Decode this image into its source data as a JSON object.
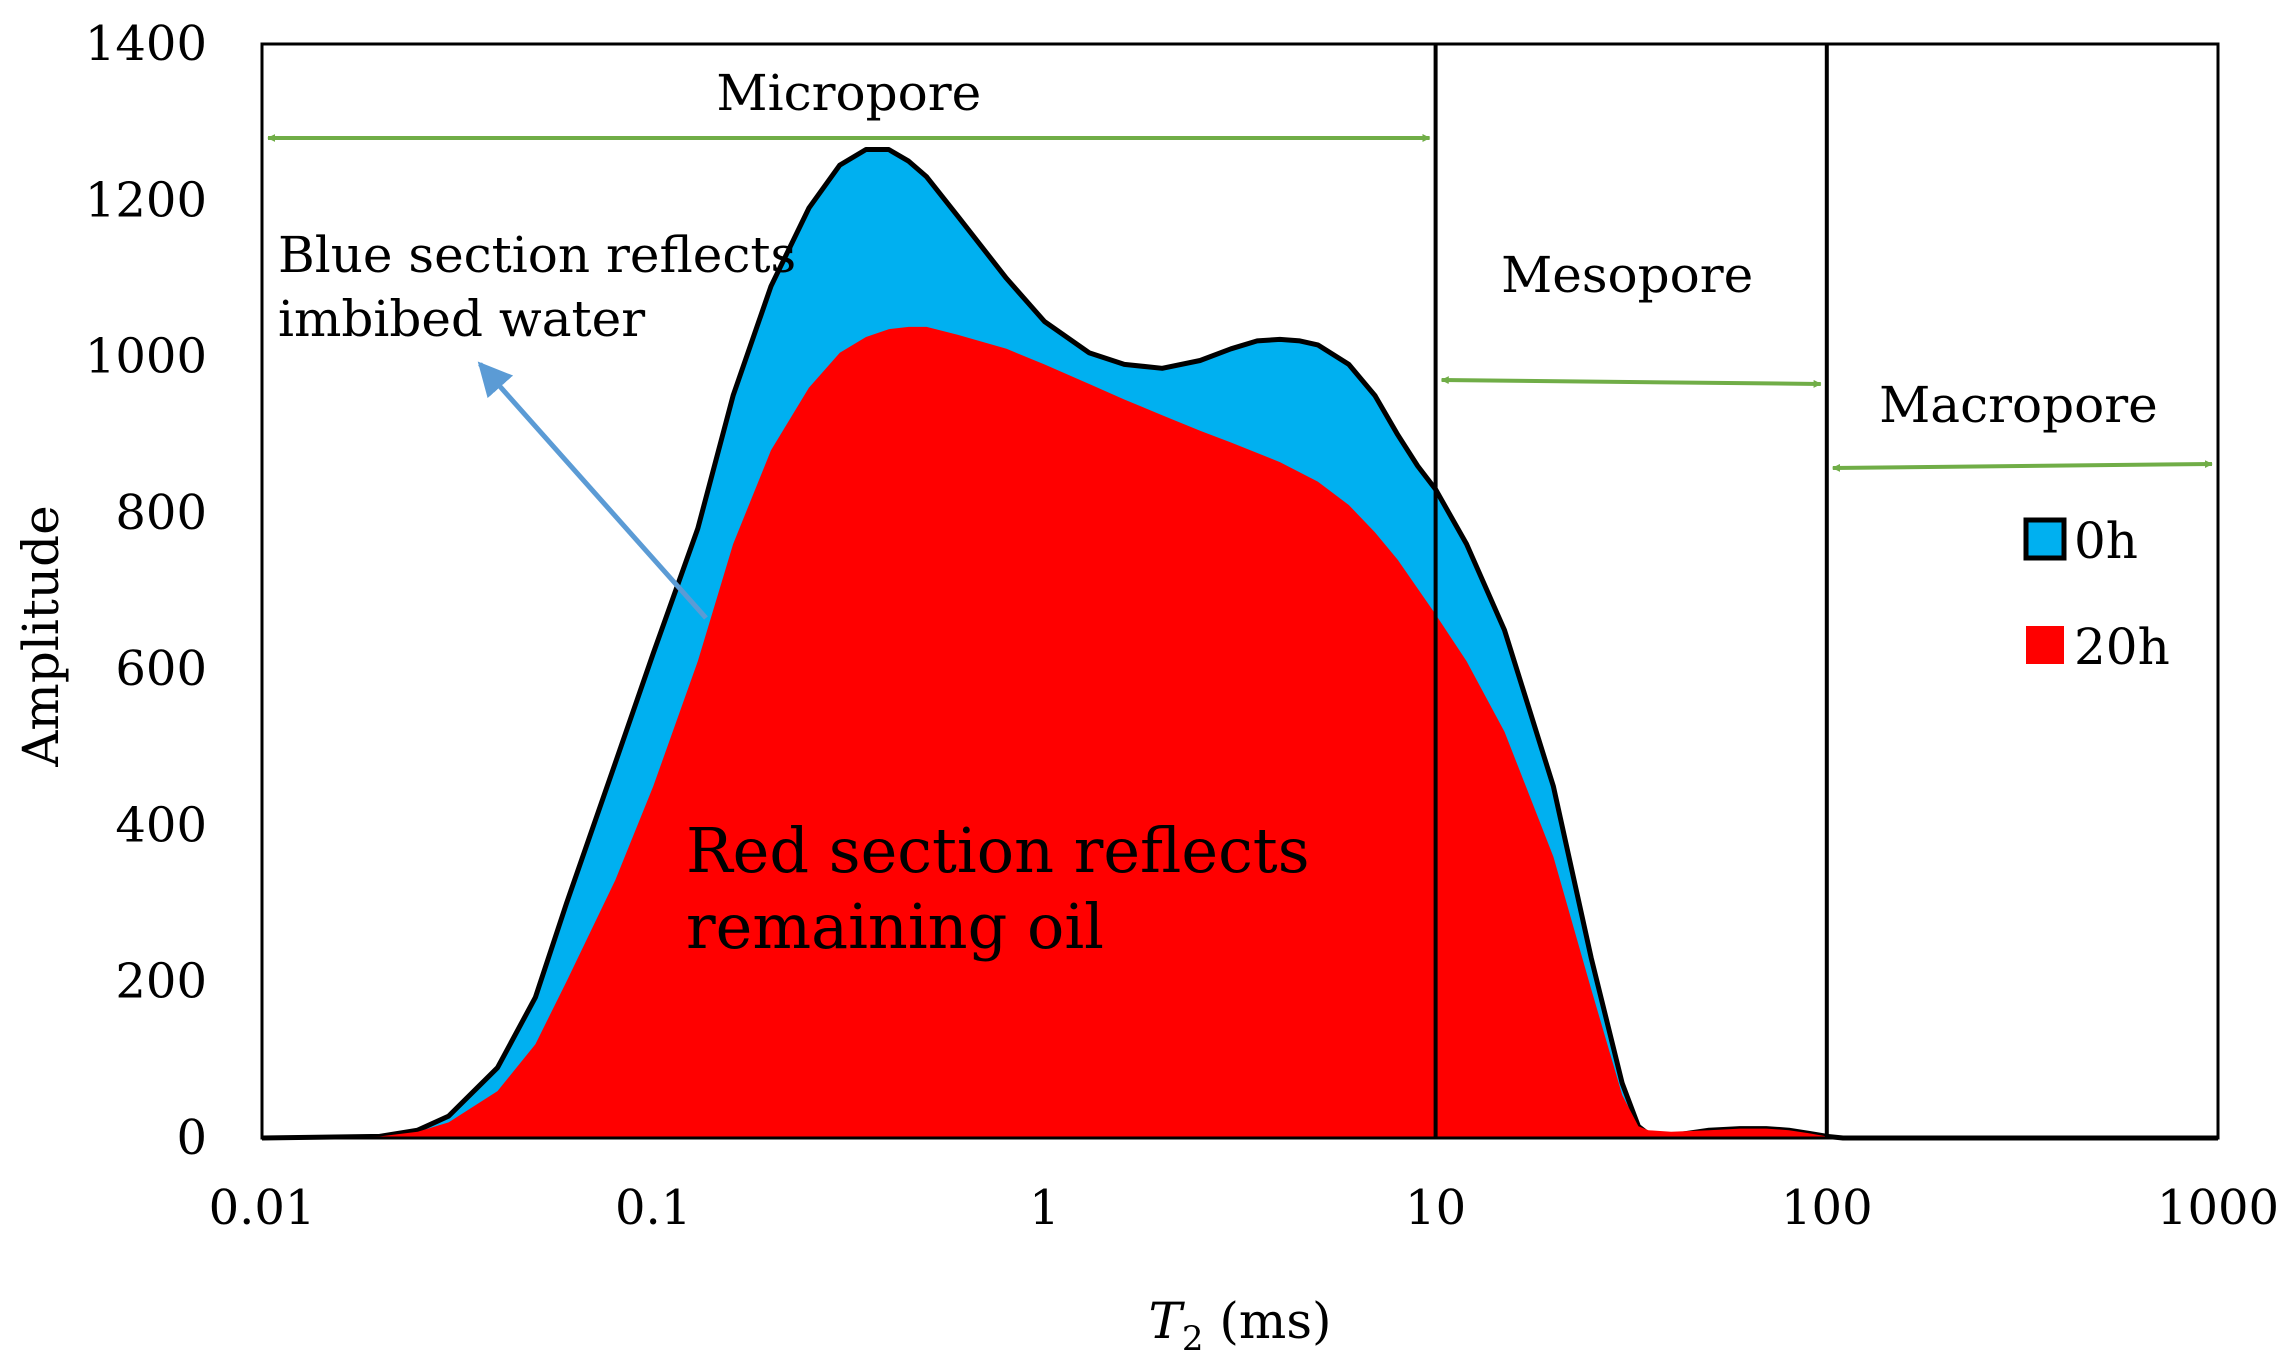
{
  "chart_data": {
    "type": "area",
    "title": "",
    "xlabel_main": "T",
    "xlabel_sub": "2",
    "xlabel_rest": " (ms)",
    "ylabel": "Amplitude",
    "xscale": "log",
    "xlim": [
      0.01,
      1000
    ],
    "ylim": [
      0,
      1400
    ],
    "x_ticks": [
      "0.01",
      "0.1",
      "1",
      "10",
      "100",
      "1000"
    ],
    "y_ticks": [
      "0",
      "200",
      "400",
      "600",
      "800",
      "1000",
      "1200",
      "1400"
    ],
    "series": [
      {
        "name": "0h",
        "color": "#00B0F0",
        "edge_color": "#000000",
        "points": [
          [
            0.01,
            0
          ],
          [
            0.02,
            2
          ],
          [
            0.025,
            10
          ],
          [
            0.03,
            28
          ],
          [
            0.04,
            90
          ],
          [
            0.05,
            180
          ],
          [
            0.06,
            300
          ],
          [
            0.08,
            480
          ],
          [
            0.1,
            620
          ],
          [
            0.13,
            780
          ],
          [
            0.16,
            950
          ],
          [
            0.2,
            1090
          ],
          [
            0.25,
            1190
          ],
          [
            0.3,
            1245
          ],
          [
            0.35,
            1265
          ],
          [
            0.4,
            1265
          ],
          [
            0.45,
            1250
          ],
          [
            0.5,
            1230
          ],
          [
            0.6,
            1180
          ],
          [
            0.8,
            1100
          ],
          [
            1.0,
            1045
          ],
          [
            1.3,
            1005
          ],
          [
            1.6,
            990
          ],
          [
            2.0,
            985
          ],
          [
            2.5,
            995
          ],
          [
            3.0,
            1010
          ],
          [
            3.5,
            1020
          ],
          [
            4.0,
            1022
          ],
          [
            4.5,
            1020
          ],
          [
            5.0,
            1015
          ],
          [
            6.0,
            990
          ],
          [
            7.0,
            950
          ],
          [
            8.0,
            900
          ],
          [
            9.0,
            860
          ],
          [
            10,
            830
          ],
          [
            12,
            760
          ],
          [
            15,
            650
          ],
          [
            20,
            450
          ],
          [
            25,
            230
          ],
          [
            30,
            70
          ],
          [
            33,
            15
          ],
          [
            35,
            5
          ],
          [
            40,
            3
          ],
          [
            50,
            10
          ],
          [
            60,
            12
          ],
          [
            70,
            12
          ],
          [
            80,
            10
          ],
          [
            90,
            6
          ],
          [
            100,
            2
          ],
          [
            110,
            0
          ],
          [
            1000,
            0
          ]
        ]
      },
      {
        "name": "20h",
        "color": "#FF0000",
        "points": [
          [
            0.01,
            0
          ],
          [
            0.02,
            2
          ],
          [
            0.025,
            8
          ],
          [
            0.03,
            20
          ],
          [
            0.04,
            60
          ],
          [
            0.05,
            120
          ],
          [
            0.06,
            200
          ],
          [
            0.08,
            330
          ],
          [
            0.1,
            450
          ],
          [
            0.13,
            610
          ],
          [
            0.16,
            760
          ],
          [
            0.2,
            880
          ],
          [
            0.25,
            960
          ],
          [
            0.3,
            1005
          ],
          [
            0.35,
            1025
          ],
          [
            0.4,
            1035
          ],
          [
            0.45,
            1038
          ],
          [
            0.5,
            1038
          ],
          [
            0.6,
            1028
          ],
          [
            0.8,
            1010
          ],
          [
            1.0,
            990
          ],
          [
            1.3,
            965
          ],
          [
            1.6,
            945
          ],
          [
            2.0,
            925
          ],
          [
            2.5,
            905
          ],
          [
            3.0,
            890
          ],
          [
            4.0,
            865
          ],
          [
            5.0,
            840
          ],
          [
            6.0,
            810
          ],
          [
            7.0,
            775
          ],
          [
            8.0,
            740
          ],
          [
            10,
            670
          ],
          [
            12,
            610
          ],
          [
            15,
            520
          ],
          [
            20,
            360
          ],
          [
            25,
            190
          ],
          [
            30,
            55
          ],
          [
            33,
            15
          ],
          [
            35,
            10
          ],
          [
            40,
            8
          ],
          [
            50,
            10
          ],
          [
            60,
            12
          ],
          [
            70,
            12
          ],
          [
            80,
            10
          ],
          [
            90,
            6
          ],
          [
            100,
            2
          ],
          [
            110,
            0
          ],
          [
            1000,
            0
          ]
        ]
      }
    ],
    "legend": {
      "position": "right",
      "entries": [
        "0h",
        "20h"
      ]
    },
    "region_boundaries": [
      10,
      100
    ],
    "regions": [
      {
        "label": "Micropore",
        "from": 0.01,
        "to": 10
      },
      {
        "label": "Mesopore",
        "from": 10,
        "to": 100
      },
      {
        "label": "Macropore",
        "from": 100,
        "to": 1000
      }
    ],
    "annotations": {
      "blue_line1": "Blue section reflects",
      "blue_line2": "imbibed water",
      "red_line1": "Red section reflects",
      "red_line2": "remaining oil"
    },
    "colors": {
      "arrow": "#70AD47",
      "pointer": "#5B9BD5",
      "frame": "#000000"
    }
  }
}
